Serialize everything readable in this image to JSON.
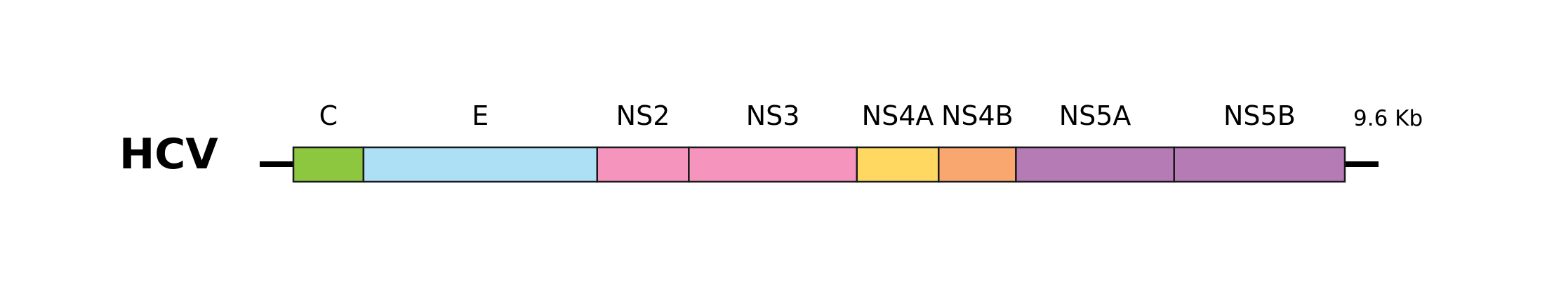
{
  "genome": {
    "name": "HCV",
    "length_label": "9.6 Kb",
    "line_color": "#000000"
  },
  "segments": [
    {
      "name": "C",
      "color": "#8DC63F",
      "relative_length": 0.78
    },
    {
      "name": "E",
      "color": "#ADE0F5",
      "relative_length": 2.6
    },
    {
      "name": "NS2",
      "color": "#F595BE",
      "relative_length": 1.02
    },
    {
      "name": "NS3",
      "color": "#F595BE",
      "relative_length": 1.87
    },
    {
      "name": "NS4A",
      "color": "#FFD862",
      "relative_length": 0.91
    },
    {
      "name": "NS4B",
      "color": "#FAA76F",
      "relative_length": 0.86
    },
    {
      "name": "NS5A",
      "color": "#B57BB5",
      "relative_length": 1.76
    },
    {
      "name": "NS5B",
      "color": "#B57BB5",
      "relative_length": 1.9
    }
  ]
}
